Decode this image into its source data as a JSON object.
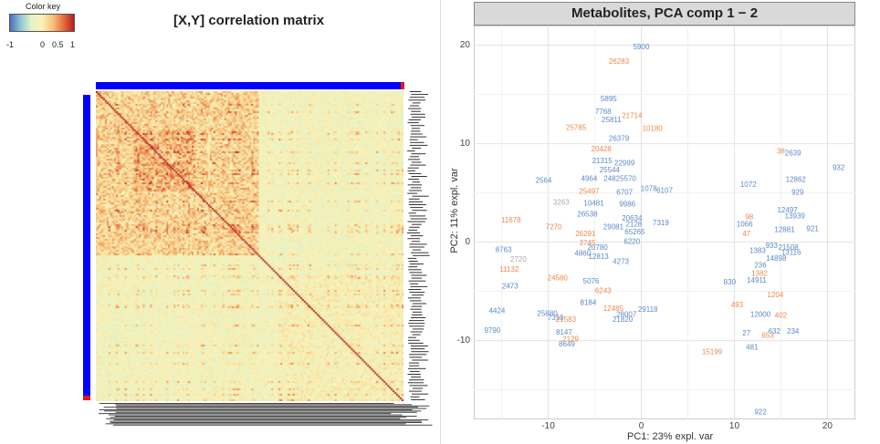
{
  "color_key": {
    "title": "Color key",
    "ticks": [
      "-1",
      "0",
      "0.5",
      "1"
    ]
  },
  "colors": {
    "side_bar": "#0000ff",
    "side_bar_end": "#ee1111",
    "blue_points": "#5b8ac9",
    "orange_points": "#ea8a4e",
    "gray_points": "#aaaaaa"
  },
  "chart_data": [
    {
      "type": "heatmap",
      "title": "[X,Y] correlation matrix",
      "color_scale": {
        "min": -1,
        "max": 1,
        "low": "#4b6fb5",
        "mid": "#fbf1b4",
        "high": "#b51c20"
      },
      "grid": false
    },
    {
      "type": "scatter",
      "title": "Metabolites, PCA comp 1 − 2",
      "xlabel": "PC1: 23% expl. var",
      "ylabel": "PC2: 11% expl. var",
      "xlim": [
        -18,
        23
      ],
      "ylim": [
        -18,
        22
      ],
      "xticks": [
        -10,
        0,
        10,
        20
      ],
      "yticks": [
        -10,
        0,
        10,
        20
      ],
      "grid": true,
      "series": [
        {
          "color": "blue",
          "points": [
            {
              "x": 0,
              "y": 19.8,
              "label": "5900"
            },
            {
              "x": -3.5,
              "y": 14.5,
              "label": "5895"
            },
            {
              "x": -4.1,
              "y": 13.2,
              "label": "7768"
            },
            {
              "x": -3.2,
              "y": 12.4,
              "label": "25811"
            },
            {
              "x": -2.4,
              "y": 10.5,
              "label": "26379"
            },
            {
              "x": -4.2,
              "y": 8.2,
              "label": "21315"
            },
            {
              "x": -1.8,
              "y": 8.0,
              "label": "22999"
            },
            {
              "x": -3.4,
              "y": 7.3,
              "label": "25544"
            },
            {
              "x": -10.5,
              "y": 6.2,
              "label": "2564"
            },
            {
              "x": -5.6,
              "y": 6.4,
              "label": "4964"
            },
            {
              "x": -2.3,
              "y": 6.4,
              "label": "24825570"
            },
            {
              "x": 0.8,
              "y": 5.4,
              "label": "1078"
            },
            {
              "x": 2.5,
              "y": 5.2,
              "label": "6107"
            },
            {
              "x": -1.8,
              "y": 5.0,
              "label": "6707"
            },
            {
              "x": -5.1,
              "y": 3.9,
              "label": "10481"
            },
            {
              "x": -1.5,
              "y": 3.8,
              "label": "9986"
            },
            {
              "x": -5.8,
              "y": 2.8,
              "label": "26538"
            },
            {
              "x": -1.0,
              "y": 2.4,
              "label": "20634"
            },
            {
              "x": -3.0,
              "y": 1.5,
              "label": "29081"
            },
            {
              "x": -0.8,
              "y": 1.8,
              "label": "2128"
            },
            {
              "x": -0.7,
              "y": 1.0,
              "label": "65265"
            },
            {
              "x": 2.1,
              "y": 1.9,
              "label": "7319"
            },
            {
              "x": -1.0,
              "y": 0.0,
              "label": "6220"
            },
            {
              "x": -4.7,
              "y": -0.6,
              "label": "20780"
            },
            {
              "x": -14.8,
              "y": -0.8,
              "label": "8763"
            },
            {
              "x": -6.3,
              "y": -1.2,
              "label": "4860"
            },
            {
              "x": -4.6,
              "y": -1.5,
              "label": "12813"
            },
            {
              "x": -2.2,
              "y": -2.0,
              "label": "4273"
            },
            {
              "x": -14.1,
              "y": -4.5,
              "label": "2473"
            },
            {
              "x": -5.4,
              "y": -4.0,
              "label": "5076"
            },
            {
              "x": -5.7,
              "y": -6.2,
              "label": "8184"
            },
            {
              "x": -15.5,
              "y": -7.0,
              "label": "4424"
            },
            {
              "x": -10.1,
              "y": -7.3,
              "label": "25880"
            },
            {
              "x": -9.2,
              "y": -7.7,
              "label": "7310"
            },
            {
              "x": -1.6,
              "y": -7.4,
              "label": "28007"
            },
            {
              "x": -2.0,
              "y": -7.9,
              "label": "21820"
            },
            {
              "x": 0.7,
              "y": -6.9,
              "label": "29118"
            },
            {
              "x": -16.0,
              "y": -9.0,
              "label": "9790"
            },
            {
              "x": -8.3,
              "y": -9.2,
              "label": "8147"
            },
            {
              "x": -8.0,
              "y": -10.4,
              "label": "8649"
            },
            {
              "x": 16.3,
              "y": 9.0,
              "label": "2639"
            },
            {
              "x": 21.2,
              "y": 7.5,
              "label": "932"
            },
            {
              "x": 11.5,
              "y": 5.8,
              "label": "1072"
            },
            {
              "x": 16.6,
              "y": 6.3,
              "label": "12862"
            },
            {
              "x": 16.8,
              "y": 5.0,
              "label": "929"
            },
            {
              "x": 15.7,
              "y": 3.2,
              "label": "12497"
            },
            {
              "x": 16.5,
              "y": 2.6,
              "label": "13939"
            },
            {
              "x": 11.1,
              "y": 1.8,
              "label": "1066"
            },
            {
              "x": 15.4,
              "y": 1.2,
              "label": "12881"
            },
            {
              "x": 18.4,
              "y": 1.3,
              "label": "921"
            },
            {
              "x": 14.0,
              "y": -0.4,
              "label": "933"
            },
            {
              "x": 12.5,
              "y": -0.9,
              "label": "1383"
            },
            {
              "x": 15.8,
              "y": -0.6,
              "label": "21508"
            },
            {
              "x": 16.1,
              "y": -1.1,
              "label": "13116"
            },
            {
              "x": 14.5,
              "y": -1.7,
              "label": "14898"
            },
            {
              "x": 12.8,
              "y": -2.4,
              "label": "236"
            },
            {
              "x": 9.5,
              "y": -4.1,
              "label": "830"
            },
            {
              "x": 12.4,
              "y": -3.9,
              "label": "14911"
            },
            {
              "x": 12.8,
              "y": -7.4,
              "label": "12000"
            },
            {
              "x": 14.3,
              "y": -9.1,
              "label": "632"
            },
            {
              "x": 16.3,
              "y": -9.1,
              "label": "234"
            },
            {
              "x": 11.3,
              "y": -9.3,
              "label": "27"
            },
            {
              "x": 11.9,
              "y": -10.7,
              "label": "481"
            },
            {
              "x": 12.8,
              "y": -17.3,
              "label": "922"
            }
          ]
        },
        {
          "color": "orange",
          "points": [
            {
              "x": -2.4,
              "y": 18.3,
              "label": "26283"
            },
            {
              "x": -1.0,
              "y": 12.8,
              "label": "21714"
            },
            {
              "x": 1.2,
              "y": 11.5,
              "label": "10180"
            },
            {
              "x": -7.0,
              "y": 11.6,
              "label": "25785"
            },
            {
              "x": -4.3,
              "y": 9.4,
              "label": "20428"
            },
            {
              "x": 15.0,
              "y": 9.2,
              "label": "38"
            },
            {
              "x": -5.6,
              "y": 5.1,
              "label": "25497"
            },
            {
              "x": -14.0,
              "y": 2.2,
              "label": "11678"
            },
            {
              "x": -9.4,
              "y": 1.5,
              "label": "7270"
            },
            {
              "x": -6.0,
              "y": 0.8,
              "label": "26291"
            },
            {
              "x": -5.8,
              "y": -0.1,
              "label": "3745"
            },
            {
              "x": -14.2,
              "y": -2.8,
              "label": "11132"
            },
            {
              "x": -9.0,
              "y": -3.7,
              "label": "24580"
            },
            {
              "x": -4.1,
              "y": -5.0,
              "label": "6243"
            },
            {
              "x": -3.0,
              "y": -6.8,
              "label": "12485"
            },
            {
              "x": -8.1,
              "y": -7.9,
              "label": "21583"
            },
            {
              "x": -7.6,
              "y": -9.9,
              "label": "2129"
            },
            {
              "x": 10.3,
              "y": -6.4,
              "label": "493"
            },
            {
              "x": 14.4,
              "y": -5.4,
              "label": "1204"
            },
            {
              "x": 15.0,
              "y": -7.5,
              "label": "402"
            },
            {
              "x": 13.6,
              "y": -9.5,
              "label": "653"
            },
            {
              "x": 7.6,
              "y": -11.2,
              "label": "15199"
            },
            {
              "x": 11.6,
              "y": 2.5,
              "label": "98"
            },
            {
              "x": 11.3,
              "y": 0.8,
              "label": "47"
            },
            {
              "x": 12.7,
              "y": -3.2,
              "label": "1382"
            }
          ]
        },
        {
          "color": "gray",
          "points": [
            {
              "x": -8.6,
              "y": 4.0,
              "label": "3263"
            },
            {
              "x": -13.2,
              "y": -1.8,
              "label": "2720"
            }
          ]
        }
      ]
    }
  ]
}
